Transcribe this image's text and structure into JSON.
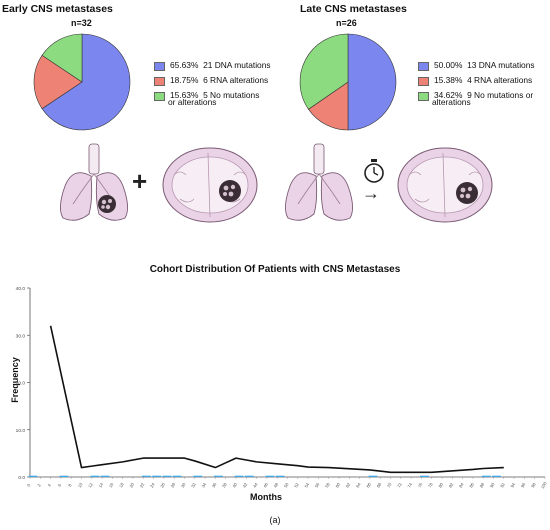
{
  "pies": [
    {
      "title": "Early CNS metastases",
      "n": "n=32",
      "slices": [
        {
          "pct": 65.63,
          "pct_label": "65.63%",
          "text": "21 DNA mutations",
          "text2": "",
          "color": "#7b86ef"
        },
        {
          "pct": 18.75,
          "pct_label": "18.75%",
          "text": "6 RNA alterations",
          "text2": "",
          "color": "#ee8275"
        },
        {
          "pct": 15.63,
          "pct_label": "15.63%",
          "text": "5 No mutations",
          "text2": "or alterations",
          "color": "#8ddb80"
        }
      ]
    },
    {
      "title": "Late CNS metastases",
      "n": "n=26",
      "slices": [
        {
          "pct": 50.0,
          "pct_label": "50.00%",
          "text": "13 DNA mutations",
          "text2": "",
          "color": "#7b86ef"
        },
        {
          "pct": 15.38,
          "pct_label": "15.38%",
          "text": "4 RNA alterations",
          "text2": "",
          "color": "#ee8275"
        },
        {
          "pct": 34.62,
          "pct_label": "34.62%",
          "text": "9 No mutations or",
          "text2": "alterations",
          "color": "#8ddb80"
        }
      ]
    }
  ],
  "illustration": {
    "plus_symbol": "+",
    "arrow_symbol": "→",
    "icons": [
      "lungs-with-tumor-icon",
      "brain-with-tumor-icon",
      "lungs-icon",
      "stopwatch-icon",
      "brain-with-tumor-icon"
    ]
  },
  "chart_data": {
    "type": "line",
    "title": "Cohort Distribution Of Patients with CNS Metastases",
    "xlabel": "Months",
    "ylabel": "Frequency",
    "ylim": [
      0,
      40
    ],
    "xlim": [
      0,
      100
    ],
    "yticks": [
      "0.0",
      "10.0",
      "20.0",
      "30.0",
      "40.0"
    ],
    "xticks": [
      "0",
      "2",
      "4",
      "6",
      "8",
      "10",
      "12",
      "14",
      "16",
      "18",
      "20",
      "22",
      "24",
      "26",
      "28",
      "30",
      "32",
      "34",
      "36",
      "38",
      "40",
      "42",
      "44",
      "46",
      "48",
      "50",
      "52",
      "54",
      "56",
      "58",
      "60",
      "62",
      "64",
      "66",
      "68",
      "70",
      "72",
      "74",
      "76",
      "78",
      "80",
      "82",
      "84",
      "86",
      "88",
      "90",
      "92",
      "94",
      "96",
      "98",
      "100"
    ],
    "line_color": "#111111",
    "bar_color": "#42a8e6",
    "series": [
      {
        "x": [
          4,
          10,
          12,
          14,
          18,
          22,
          24,
          26,
          28,
          30,
          32,
          36,
          38,
          40,
          42,
          44,
          48,
          52,
          54,
          58,
          66,
          70,
          76,
          78,
          86,
          88,
          92
        ],
        "values": [
          32,
          2,
          2.3,
          2.6,
          3.2,
          4,
          4,
          4,
          4,
          4,
          3.4,
          2,
          3,
          4,
          3.6,
          3.2,
          2.8,
          2.4,
          2.1,
          2,
          1.5,
          1,
          1,
          1,
          1.6,
          1.8,
          2
        ]
      }
    ],
    "bars": [
      {
        "x": 0,
        "value": 1
      },
      {
        "x": 6,
        "value": 1
      },
      {
        "x": 12,
        "value": 1
      },
      {
        "x": 14,
        "value": 1
      },
      {
        "x": 22,
        "value": 1
      },
      {
        "x": 24,
        "value": 1
      },
      {
        "x": 26,
        "value": 1
      },
      {
        "x": 28,
        "value": 1
      },
      {
        "x": 32,
        "value": 1
      },
      {
        "x": 36,
        "value": 1
      },
      {
        "x": 40,
        "value": 1
      },
      {
        "x": 42,
        "value": 1
      },
      {
        "x": 46,
        "value": 1
      },
      {
        "x": 48,
        "value": 1
      },
      {
        "x": 66,
        "value": 1
      },
      {
        "x": 76,
        "value": 1
      },
      {
        "x": 88,
        "value": 1
      },
      {
        "x": 90,
        "value": 1
      }
    ]
  },
  "caption": "(a)"
}
